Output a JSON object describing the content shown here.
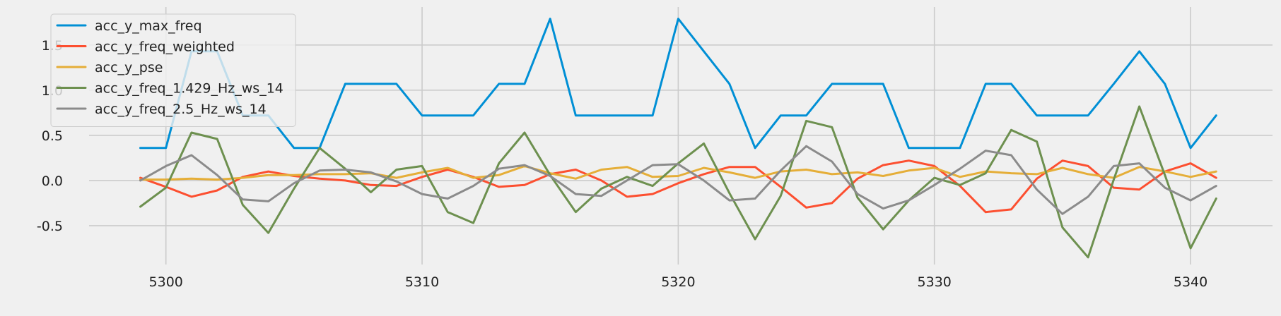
{
  "chart_data": {
    "type": "line",
    "title": "",
    "xlabel": "",
    "ylabel": "",
    "xlim": [
      5297,
      5343.2
    ],
    "ylim": [
      -0.93,
      1.92
    ],
    "xticks": [
      5300,
      5310,
      5320,
      5330,
      5340
    ],
    "yticks": [
      -0.5,
      0.0,
      0.5,
      1.0,
      1.5
    ],
    "grid": true,
    "legend_position": "upper-left",
    "x": [
      5299,
      5300,
      5301,
      5302,
      5303,
      5304,
      5305,
      5306,
      5307,
      5308,
      5309,
      5310,
      5311,
      5312,
      5313,
      5314,
      5315,
      5316,
      5317,
      5318,
      5319,
      5320,
      5321,
      5322,
      5323,
      5324,
      5325,
      5326,
      5327,
      5328,
      5329,
      5330,
      5331,
      5332,
      5333,
      5334,
      5335,
      5336,
      5337,
      5338,
      5339,
      5340,
      5341
    ],
    "series": [
      {
        "name": "acc_y_max_freq",
        "color": "#008fd5",
        "values": [
          0.36,
          0.36,
          1.43,
          1.43,
          0.72,
          0.72,
          0.36,
          0.36,
          1.07,
          1.07,
          1.07,
          0.72,
          0.72,
          0.72,
          1.07,
          1.07,
          1.79,
          0.72,
          0.72,
          0.72,
          0.72,
          1.79,
          1.43,
          1.07,
          0.36,
          0.72,
          0.72,
          1.07,
          1.07,
          1.07,
          0.36,
          0.36,
          0.36,
          1.07,
          1.07,
          0.72,
          0.72,
          0.72,
          1.07,
          1.43,
          1.07,
          0.36,
          0.72
        ]
      },
      {
        "name": "acc_y_freq_weighted",
        "color": "#fc4f30",
        "values": [
          0.03,
          -0.07,
          -0.18,
          -0.11,
          0.04,
          0.1,
          0.05,
          0.02,
          0.0,
          -0.05,
          -0.06,
          0.04,
          0.12,
          0.04,
          -0.07,
          -0.05,
          0.07,
          0.12,
          0.0,
          -0.18,
          -0.15,
          -0.03,
          0.07,
          0.15,
          0.15,
          -0.07,
          -0.3,
          -0.25,
          0.02,
          0.17,
          0.22,
          0.16,
          -0.06,
          -0.35,
          -0.32,
          0.02,
          0.22,
          0.16,
          -0.08,
          -0.1,
          0.1,
          0.19,
          0.03
        ]
      },
      {
        "name": "acc_y_pse",
        "color": "#e5ae38",
        "values": [
          0.01,
          0.01,
          0.02,
          0.01,
          0.03,
          0.06,
          0.06,
          0.07,
          0.07,
          0.08,
          0.03,
          0.09,
          0.14,
          0.03,
          0.06,
          0.16,
          0.08,
          0.02,
          0.12,
          0.15,
          0.04,
          0.05,
          0.14,
          0.09,
          0.03,
          0.1,
          0.12,
          0.07,
          0.09,
          0.05,
          0.11,
          0.14,
          0.04,
          0.1,
          0.08,
          0.07,
          0.14,
          0.07,
          0.03,
          0.15,
          0.1,
          0.04,
          0.1
        ]
      },
      {
        "name": "acc_y_freq_1.429_Hz_ws_14",
        "color": "#6d904f",
        "values": [
          -0.29,
          -0.08,
          0.53,
          0.46,
          -0.27,
          -0.58,
          -0.09,
          0.36,
          0.13,
          -0.13,
          0.12,
          0.16,
          -0.35,
          -0.47,
          0.19,
          0.53,
          0.06,
          -0.35,
          -0.09,
          0.04,
          -0.06,
          0.19,
          0.41,
          -0.14,
          -0.65,
          -0.17,
          0.66,
          0.59,
          -0.19,
          -0.54,
          -0.22,
          0.03,
          -0.05,
          0.08,
          0.56,
          0.43,
          -0.52,
          -0.85,
          0.01,
          0.82,
          0.06,
          -0.75,
          -0.2
        ]
      },
      {
        "name": "acc_y_freq_2.5_Hz_ws_14",
        "color": "#8b8b8b",
        "values": [
          0.0,
          0.16,
          0.28,
          0.06,
          -0.21,
          -0.23,
          -0.03,
          0.11,
          0.12,
          0.09,
          -0.01,
          -0.15,
          -0.2,
          -0.06,
          0.13,
          0.17,
          0.05,
          -0.15,
          -0.17,
          0.0,
          0.17,
          0.18,
          0.0,
          -0.22,
          -0.2,
          0.11,
          0.38,
          0.21,
          -0.15,
          -0.31,
          -0.22,
          -0.05,
          0.13,
          0.33,
          0.28,
          -0.1,
          -0.37,
          -0.18,
          0.16,
          0.19,
          -0.08,
          -0.22,
          -0.06
        ]
      }
    ]
  }
}
